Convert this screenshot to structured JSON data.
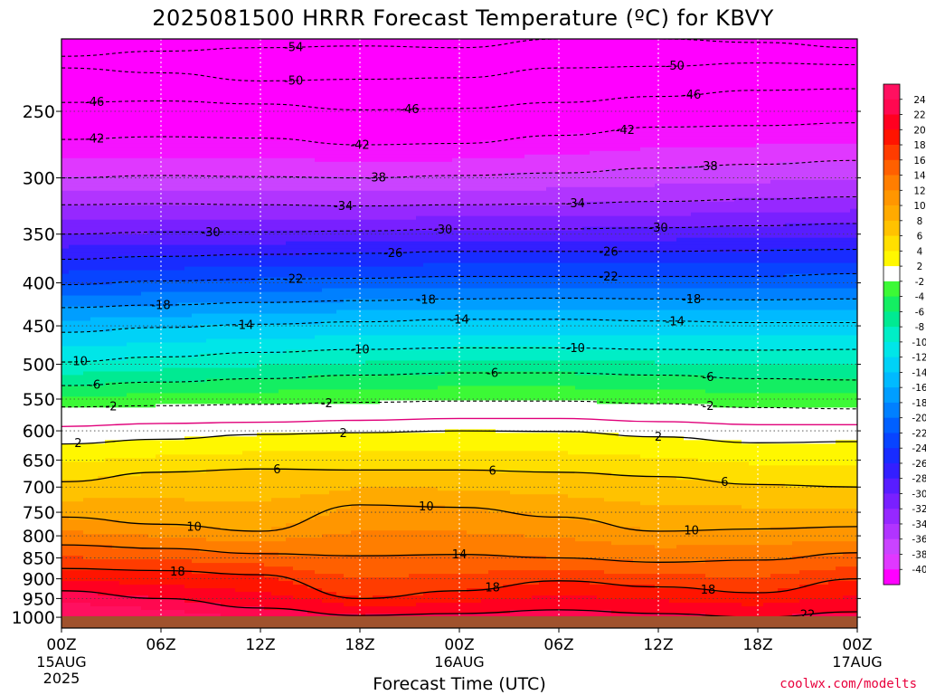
{
  "chart_data": {
    "type": "heatmap",
    "title": "2025081500 HRRR Forecast Temperature (ºC) for KBVY",
    "xlabel": "Forecast Time (UTC)",
    "ylabel": "",
    "credit": "coolwx.com/modelts",
    "x_unit": "forecast hour",
    "xlim": [
      0,
      48
    ],
    "ylim": [
      1030,
      205
    ],
    "y_scale": "log",
    "grid": true,
    "legend": "colorbar-right",
    "x_ticks": [
      {
        "hour": 0,
        "label": "00Z",
        "sub": [
          "15AUG",
          "2025"
        ]
      },
      {
        "hour": 6,
        "label": "06Z",
        "sub": []
      },
      {
        "hour": 12,
        "label": "12Z",
        "sub": []
      },
      {
        "hour": 18,
        "label": "18Z",
        "sub": []
      },
      {
        "hour": 24,
        "label": "00Z",
        "sub": [
          "16AUG"
        ]
      },
      {
        "hour": 30,
        "label": "06Z",
        "sub": []
      },
      {
        "hour": 36,
        "label": "12Z",
        "sub": []
      },
      {
        "hour": 42,
        "label": "18Z",
        "sub": []
      },
      {
        "hour": 48,
        "label": "00Z",
        "sub": [
          "17AUG"
        ]
      }
    ],
    "y_ticks": [
      250,
      300,
      350,
      400,
      450,
      500,
      550,
      600,
      650,
      700,
      750,
      800,
      850,
      900,
      950,
      1000
    ],
    "colorbar_labels": [
      "24",
      "22",
      "20",
      "18",
      "16",
      "14",
      "12",
      "10",
      "8",
      "6",
      "4",
      "2",
      "-2",
      "-4",
      "-6",
      "-8",
      "-10",
      "-12",
      "-14",
      "-16",
      "-18",
      "-20",
      "-22",
      "-24",
      "-26",
      "-28",
      "-30",
      "-32",
      "-34",
      "-36",
      "-38",
      "-40"
    ],
    "isotherms": [
      {
        "t": -54,
        "style": "dashed",
        "p": [
          215,
          212,
          210,
          209,
          210,
          205,
          205,
          207,
          210
        ],
        "labels": [
          {
            "h": 14,
            "text": "-54"
          }
        ]
      },
      {
        "t": -50,
        "style": "dashed",
        "p": [
          222,
          225,
          230,
          229,
          228,
          222,
          221,
          219,
          220
        ],
        "labels": [
          {
            "h": 14,
            "text": "-50"
          },
          {
            "h": 37,
            "text": "-50"
          }
        ]
      },
      {
        "t": -46,
        "style": "dashed",
        "p": [
          244,
          243,
          245,
          249,
          248,
          244,
          240,
          236,
          235
        ],
        "labels": [
          {
            "h": 2,
            "text": "-46"
          },
          {
            "h": 21,
            "text": "-46"
          },
          {
            "h": 38,
            "text": "-46"
          }
        ]
      },
      {
        "t": -42,
        "style": "dashed",
        "p": [
          270,
          268,
          269,
          274,
          273,
          267,
          261,
          260,
          258
        ],
        "labels": [
          {
            "h": 2,
            "text": "-42"
          },
          {
            "h": 18,
            "text": "-42"
          },
          {
            "h": 34,
            "text": "-42"
          }
        ]
      },
      {
        "t": -38,
        "style": "dashed",
        "p": [
          300,
          298,
          299,
          300,
          298,
          296,
          292,
          289,
          286
        ],
        "labels": [
          {
            "h": 19,
            "text": "-38"
          },
          {
            "h": 39,
            "text": "-38"
          }
        ]
      },
      {
        "t": -34,
        "style": "dashed",
        "p": [
          323,
          322,
          323,
          324,
          323,
          322,
          320,
          318,
          316
        ],
        "labels": [
          {
            "h": 17,
            "text": "-34"
          },
          {
            "h": 31,
            "text": "-34"
          }
        ]
      },
      {
        "t": -30,
        "style": "dashed",
        "p": [
          350,
          348,
          348,
          347,
          345,
          345,
          344,
          342,
          340
        ],
        "labels": [
          {
            "h": 9,
            "text": "-30"
          },
          {
            "h": 23,
            "text": "-30"
          },
          {
            "h": 36,
            "text": "-30"
          }
        ]
      },
      {
        "t": -26,
        "style": "dashed",
        "p": [
          375,
          372,
          370,
          369,
          367,
          367,
          367,
          366,
          365
        ],
        "labels": [
          {
            "h": 20,
            "text": "-26"
          },
          {
            "h": 33,
            "text": "-26"
          }
        ]
      },
      {
        "t": -22,
        "style": "dashed",
        "p": [
          402,
          398,
          396,
          395,
          393,
          393,
          393,
          393,
          390
        ],
        "labels": [
          {
            "h": 14,
            "text": "-22"
          },
          {
            "h": 33,
            "text": "-22"
          }
        ]
      },
      {
        "t": -18,
        "style": "dashed",
        "p": [
          428,
          425,
          422,
          420,
          418,
          417,
          418,
          419,
          418
        ],
        "labels": [
          {
            "h": 6,
            "text": "-18"
          },
          {
            "h": 22,
            "text": "-18"
          },
          {
            "h": 38,
            "text": "-18"
          }
        ]
      },
      {
        "t": -14,
        "style": "dashed",
        "p": [
          458,
          452,
          448,
          445,
          442,
          442,
          444,
          446,
          446
        ],
        "labels": [
          {
            "h": 11,
            "text": "-14"
          },
          {
            "h": 24,
            "text": "-14"
          },
          {
            "h": 37,
            "text": "-14"
          }
        ]
      },
      {
        "t": -10,
        "style": "dashed",
        "p": [
          497,
          490,
          484,
          480,
          478,
          478,
          480,
          481,
          480
        ],
        "labels": [
          {
            "h": 1,
            "text": "-10"
          },
          {
            "h": 18,
            "text": "-10"
          },
          {
            "h": 31,
            "text": "-10"
          }
        ]
      },
      {
        "t": -6,
        "style": "dashed",
        "p": [
          530,
          525,
          520,
          515,
          512,
          512,
          515,
          520,
          522
        ],
        "labels": [
          {
            "h": 2,
            "text": "-6"
          },
          {
            "h": 26,
            "text": "-6"
          },
          {
            "h": 39,
            "text": "-6"
          }
        ]
      },
      {
        "t": -2,
        "style": "dashed",
        "p": [
          562,
          560,
          558,
          555,
          553,
          553,
          557,
          563,
          565
        ],
        "labels": [
          {
            "h": 3,
            "text": "-2"
          },
          {
            "h": 16,
            "text": "-2"
          },
          {
            "h": 39,
            "text": "-2"
          }
        ]
      },
      {
        "t": 0,
        "style": "magenta",
        "p": [
          593,
          588,
          586,
          583,
          580,
          580,
          585,
          590,
          590
        ],
        "labels": []
      },
      {
        "t": 2,
        "style": "solid",
        "p": [
          622,
          614,
          606,
          603,
          600,
          601,
          610,
          620,
          618
        ],
        "labels": [
          {
            "h": 1,
            "text": "2"
          },
          {
            "h": 17,
            "text": "2"
          },
          {
            "h": 36,
            "text": "2"
          }
        ]
      },
      {
        "t": 6,
        "style": "solid",
        "p": [
          690,
          672,
          666,
          668,
          668,
          672,
          680,
          695,
          700
        ],
        "labels": [
          {
            "h": 13,
            "text": "6"
          },
          {
            "h": 26,
            "text": "6"
          },
          {
            "h": 40,
            "text": "6"
          }
        ]
      },
      {
        "t": 10,
        "style": "solid",
        "p": [
          760,
          775,
          790,
          735,
          740,
          760,
          790,
          785,
          780
        ],
        "labels": [
          {
            "h": 8,
            "text": "10"
          },
          {
            "h": 22,
            "text": "10"
          },
          {
            "h": 38,
            "text": "10"
          }
        ]
      },
      {
        "t": 14,
        "style": "solid",
        "p": [
          820,
          828,
          840,
          845,
          842,
          850,
          860,
          855,
          838
        ],
        "labels": [
          {
            "h": 24,
            "text": "14"
          }
        ]
      },
      {
        "t": 18,
        "style": "solid",
        "p": [
          875,
          880,
          890,
          950,
          930,
          905,
          920,
          935,
          900
        ],
        "labels": [
          {
            "h": 7,
            "text": "18"
          },
          {
            "h": 26,
            "text": "18"
          },
          {
            "h": 39,
            "text": "18"
          }
        ]
      },
      {
        "t": 22,
        "style": "solid",
        "p": [
          930,
          950,
          975,
          995,
          990,
          980,
          990,
          1000,
          985
        ],
        "labels": [
          {
            "h": 45,
            "text": "22"
          }
        ]
      }
    ],
    "surface": "1000+"
  }
}
